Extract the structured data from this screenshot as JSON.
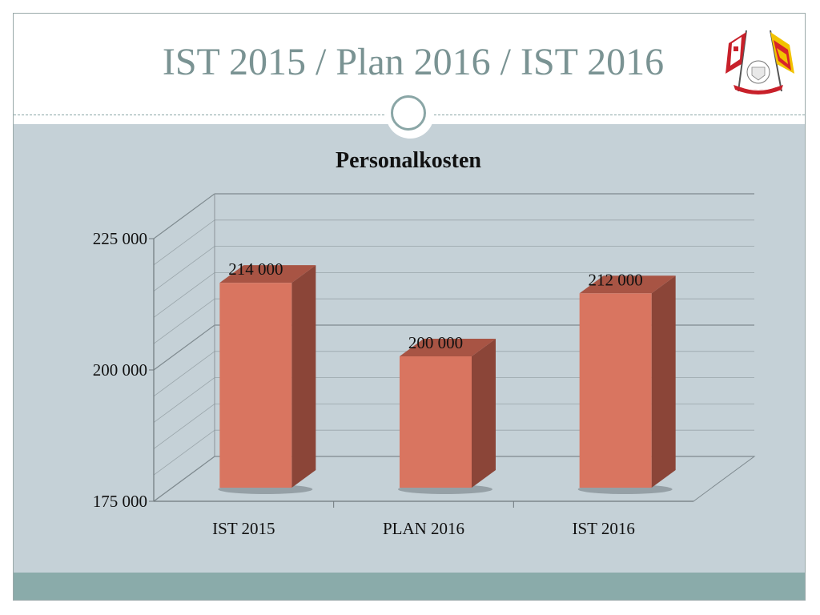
{
  "slide": {
    "title": "IST 2015 / Plan 2016 / IST 2016"
  },
  "colors": {
    "bar_front": "#d97560",
    "bar_side": "#8b4538",
    "bar_top": "#a85444",
    "chart_background": "#c5d1d7",
    "title_color": "#7a9393",
    "footer_bar": "#8aabaa"
  },
  "logo": {
    "icon": "flags-crest-icon"
  },
  "chart_data": {
    "type": "bar",
    "style": "3d-column",
    "title": "Personalkosten",
    "categories": [
      "IST 2015",
      "PLAN 2016",
      "IST 2016"
    ],
    "values": [
      214000,
      200000,
      212000
    ],
    "data_labels": [
      "214 000",
      "200 000",
      "212 000"
    ],
    "ylim": [
      175000,
      225000
    ],
    "yticks": [
      175000,
      200000,
      225000
    ],
    "ytick_labels": [
      "175 000",
      "200 000",
      "225 000"
    ],
    "grid": true,
    "legend": "none"
  }
}
